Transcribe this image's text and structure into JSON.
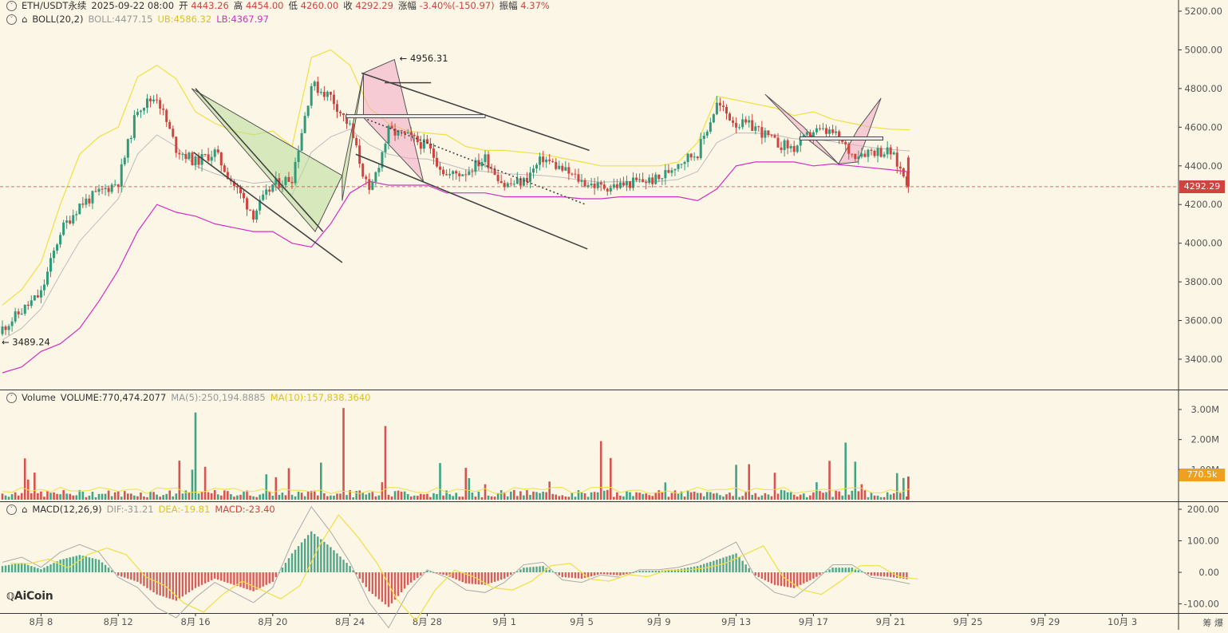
{
  "header": {
    "symbol": "ETH/USDT永续",
    "datetime": "2025-09-22 08:00",
    "open_label": "开",
    "open": "4443.26",
    "high_label": "高",
    "high": "4454.00",
    "low_label": "低",
    "low": "4260.00",
    "close_label": "收",
    "close": "4292.29",
    "change_label": "涨幅",
    "change": "-3.40%(-150.97)",
    "amp_label": "振幅",
    "amp": "4.37%"
  },
  "boll": {
    "label": "BOLL(20,2)",
    "mid": "BOLL:4477.15",
    "ub": "UB:4586.32",
    "lb": "LB:4367.97"
  },
  "volume": {
    "label": "Volume",
    "value": "VOLUME:770,474.2077",
    "ma5": "MA(5):250,194.8885",
    "ma10": "MA(10):157,838.3640"
  },
  "macd": {
    "label": "MACD(12,26,9)",
    "dif": "DIF:-31.21",
    "dea": "DEA:-19.81",
    "macd": "MACD:-23.40"
  },
  "current_price_tag": "4292.29",
  "volume_tag": "770.5k",
  "logo": "AiCoin",
  "corner_icons": "筹 爆",
  "colors": {
    "up": "#2e9b7a",
    "down": "#d0433f",
    "ub": "#f0e040",
    "lb": "#d32fc3",
    "mid": "#bdbdbd",
    "bg": "#fcf6e6"
  },
  "chart_data": [
    {
      "type": "candlestick",
      "title": "ETH/USDT永续",
      "y_axis_ticks": [
        "5200.00",
        "5000.00",
        "4800.00",
        "4600.00",
        "4400.00",
        "4200.00",
        "4000.00",
        "3800.00",
        "3600.00",
        "3400.00"
      ],
      "x_axis_ticks": [
        "8月 8",
        "8月 12",
        "8月 16",
        "8月 20",
        "8月 24",
        "8月 28",
        "9月 1",
        "9月 5",
        "9月 9",
        "9月 13",
        "9月 17",
        "9月 21",
        "9月 25",
        "9月 29",
        "10月 3"
      ],
      "ylim": [
        3270,
        5270
      ],
      "annotations": [
        {
          "text": "← 4956.31",
          "date": "8月 24",
          "price": 4956.31
        },
        {
          "text": "← 3489.24",
          "date": "8月 6",
          "price": 3489.24
        }
      ],
      "current_price": 4292.29,
      "price_path": [
        [
          "8月 6",
          3560
        ],
        [
          "8月 7",
          3650
        ],
        [
          "8月 8",
          3740
        ],
        [
          "8月 9",
          4060
        ],
        [
          "8月 10",
          4200
        ],
        [
          "8月 11",
          4260
        ],
        [
          "8月 12",
          4320
        ],
        [
          "8月 13",
          4700
        ],
        [
          "8月 14",
          4760
        ],
        [
          "8月 15",
          4490
        ],
        [
          "8月 16",
          4420
        ],
        [
          "8月 17",
          4470
        ],
        [
          "8月 18",
          4300
        ],
        [
          "8月 19",
          4150
        ],
        [
          "8月 20",
          4300
        ],
        [
          "8月 21",
          4340
        ],
        [
          "8月 22",
          4820
        ],
        [
          "8月 23",
          4760
        ],
        [
          "8月 24",
          4600
        ],
        [
          "8月 25",
          4250
        ],
        [
          "8月 26",
          4580
        ],
        [
          "8月 27",
          4550
        ],
        [
          "8月 28",
          4500
        ],
        [
          "8月 29",
          4350
        ],
        [
          "8月 30",
          4370
        ],
        [
          "8月 31",
          4440
        ],
        [
          "9月 1",
          4300
        ],
        [
          "9月 2",
          4320
        ],
        [
          "9月 3",
          4440
        ],
        [
          "9月 4",
          4380
        ],
        [
          "9月 5",
          4320
        ],
        [
          "9月 6",
          4290
        ],
        [
          "9月 7",
          4300
        ],
        [
          "9月 8",
          4320
        ],
        [
          "9月 9",
          4330
        ],
        [
          "9月 10",
          4420
        ],
        [
          "9月 11",
          4470
        ],
        [
          "9月 12",
          4720
        ],
        [
          "9月 13",
          4620
        ],
        [
          "9月 14",
          4600
        ],
        [
          "9月 15",
          4520
        ],
        [
          "9月 16",
          4490
        ],
        [
          "9月 17",
          4580
        ],
        [
          "9月 18",
          4570
        ],
        [
          "9月 19",
          4460
        ],
        [
          "9月 20",
          4480
        ],
        [
          "9月 21",
          4470
        ],
        [
          "9月 22",
          4292
        ]
      ],
      "boll_ub": [
        3680,
        3760,
        3900,
        4200,
        4460,
        4550,
        4600,
        4860,
        4920,
        4850,
        4680,
        4620,
        4580,
        4560,
        4580,
        4500,
        4960,
        5000,
        4920,
        4700,
        4620,
        4580,
        4570,
        4560,
        4500,
        4480,
        4480,
        4470,
        4460,
        4440,
        4420,
        4400,
        4400,
        4400,
        4400,
        4420,
        4520,
        4760,
        4740,
        4720,
        4700,
        4660,
        4680,
        4640,
        4620,
        4600,
        4590,
        4586
      ],
      "boll_lb": [
        3330,
        3360,
        3440,
        3480,
        3560,
        3700,
        3860,
        4060,
        4200,
        4160,
        4140,
        4100,
        4080,
        4060,
        4060,
        4000,
        3980,
        4100,
        4260,
        4320,
        4300,
        4300,
        4300,
        4260,
        4260,
        4260,
        4240,
        4240,
        4240,
        4240,
        4230,
        4230,
        4240,
        4240,
        4240,
        4240,
        4220,
        4280,
        4400,
        4420,
        4420,
        4420,
        4400,
        4410,
        4400,
        4390,
        4380,
        4368
      ],
      "boll_mid": [
        3500,
        3560,
        3660,
        3840,
        4010,
        4120,
        4230,
        4460,
        4560,
        4500,
        4400,
        4360,
        4330,
        4310,
        4320,
        4250,
        4470,
        4550,
        4590,
        4510,
        4460,
        4440,
        4435,
        4410,
        4380,
        4370,
        4360,
        4355,
        4350,
        4340,
        4325,
        4315,
        4320,
        4320,
        4320,
        4330,
        4370,
        4520,
        4570,
        4570,
        4560,
        4540,
        4540,
        4525,
        4510,
        4495,
        4485,
        4477
      ]
    },
    {
      "type": "bar",
      "title": "Volume",
      "y_axis_ticks": [
        "3.00M",
        "2.00M",
        "1.00M"
      ],
      "latest": 770474.2077,
      "ma5": 250194.8885,
      "ma10": 157838.364
    },
    {
      "type": "bar",
      "title": "MACD(12,26,9)",
      "y_axis_ticks": [
        "200.00",
        "100.00",
        "0.00",
        "-100.00"
      ],
      "dif": -31.21,
      "dea": -19.81,
      "macd": -23.4,
      "histogram": [
        20,
        30,
        10,
        40,
        55,
        40,
        -10,
        -30,
        -70,
        -90,
        -50,
        -20,
        -40,
        -60,
        -30,
        60,
        130,
        80,
        20,
        -60,
        -110,
        -40,
        5,
        -10,
        -35,
        -40,
        -20,
        15,
        20,
        -15,
        -20,
        -5,
        -10,
        5,
        5,
        10,
        20,
        40,
        60,
        -10,
        -40,
        -50,
        -20,
        15,
        15,
        -10,
        -15,
        -23
      ]
    }
  ]
}
